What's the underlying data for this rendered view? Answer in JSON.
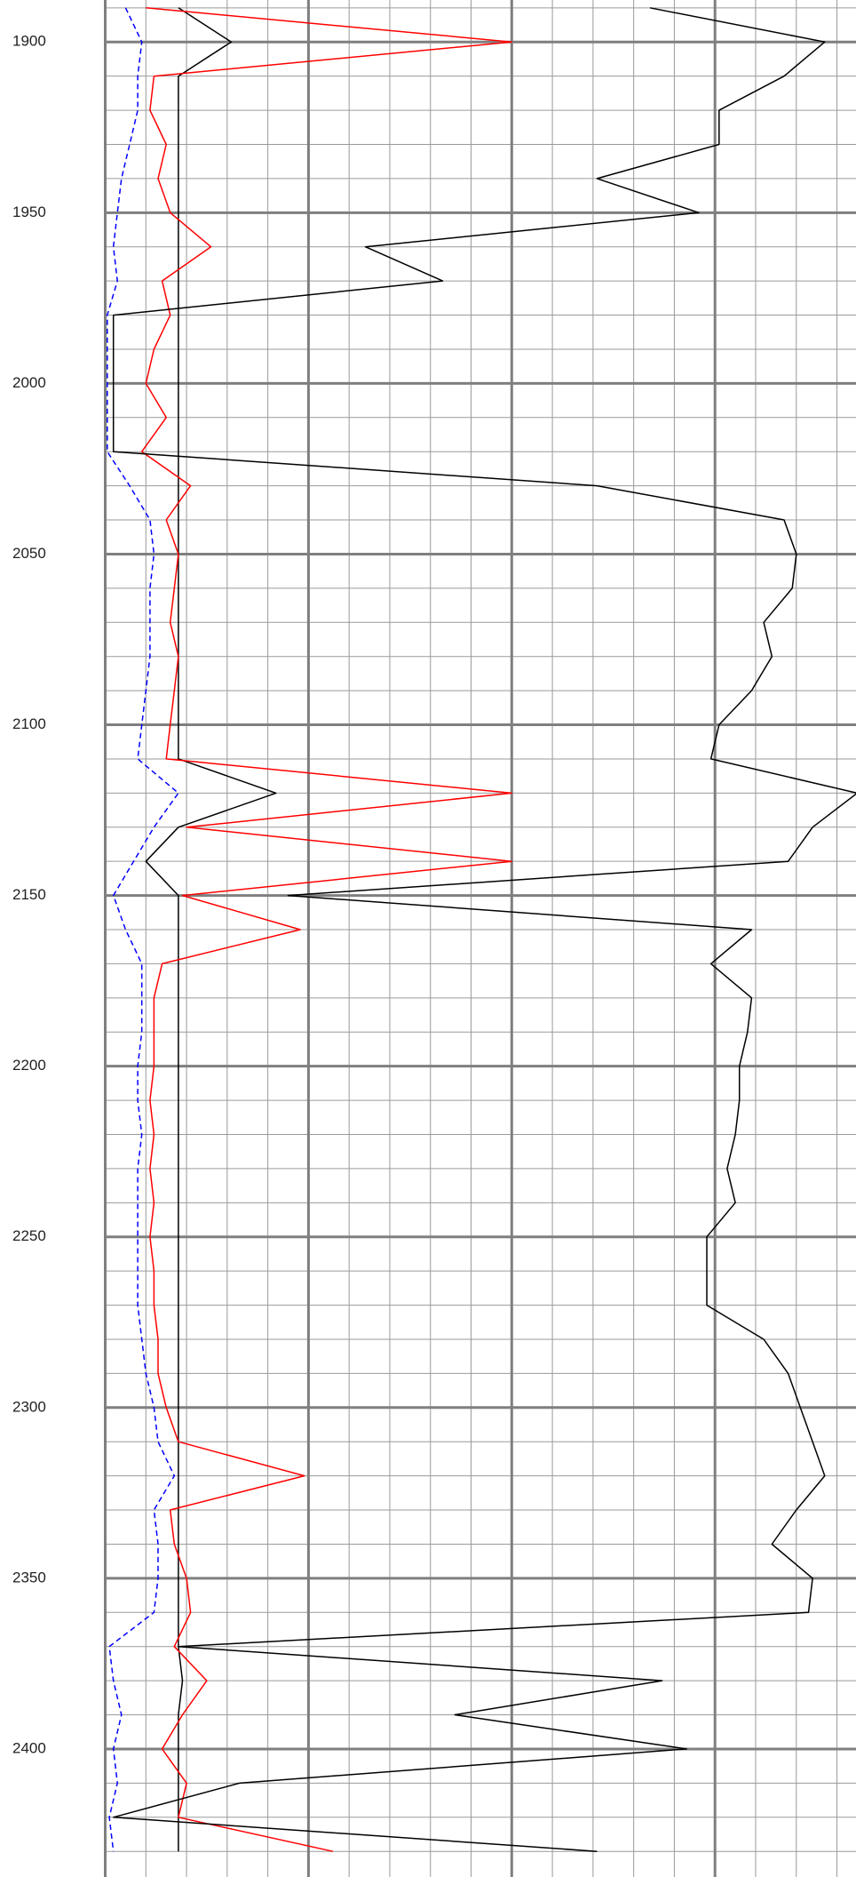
{
  "chart_data": {
    "type": "line",
    "ylim": [
      1887.7,
      2437.5
    ],
    "yticks": [
      1900,
      1950,
      2000,
      2050,
      2100,
      2150,
      2200,
      2250,
      2300,
      2350,
      2400
    ],
    "yminor": [
      1890,
      1910,
      1920,
      1930,
      1940,
      1960,
      1970,
      1980,
      1990,
      2010,
      2020,
      2030,
      2040,
      2060,
      2070,
      2080,
      2090,
      2110,
      2120,
      2130,
      2140,
      2160,
      2170,
      2180,
      2190,
      2210,
      2220,
      2230,
      2240,
      2260,
      2270,
      2280,
      2290,
      2310,
      2320,
      2330,
      2340,
      2360,
      2370,
      2380,
      2390,
      2410,
      2420,
      2430
    ],
    "tracks": [
      {
        "xlim": [
          0,
          10
        ],
        "xticks": [
          0,
          1,
          2,
          3,
          4,
          5,
          6,
          7,
          8,
          9,
          10
        ]
      },
      {
        "xlim": [
          0,
          10
        ],
        "xticks": [
          1,
          2,
          3,
          4,
          5,
          6,
          7,
          8
        ]
      }
    ],
    "grid": true,
    "depth": [
      1890,
      1900,
      1910,
      1920,
      1930,
      1940,
      1950,
      1960,
      1970,
      1980,
      1990,
      2000,
      2010,
      2020,
      2030,
      2040,
      2050,
      2060,
      2070,
      2080,
      2090,
      2100,
      2110,
      2120,
      2130,
      2140,
      2150,
      2160,
      2170,
      2180,
      2190,
      2200,
      2210,
      2220,
      2230,
      2240,
      2250,
      2260,
      2270,
      2280,
      2290,
      2300,
      2310,
      2320,
      2330,
      2340,
      2350,
      2360,
      2370,
      2380,
      2390,
      2400,
      2410,
      2420,
      2430
    ],
    "series": [
      {
        "track": 0,
        "color": "#0000ff",
        "dashed": true,
        "values": [
          0.5,
          0.9,
          0.8,
          0.8,
          0.6,
          0.4,
          0.3,
          0.2,
          0.3,
          0.05,
          0.05,
          0.05,
          0.05,
          0.05,
          0.6,
          1.1,
          1.2,
          1.1,
          1.1,
          1.1,
          1.0,
          0.9,
          0.8,
          1.8,
          1.2,
          0.7,
          0.2,
          0.5,
          0.9,
          0.9,
          0.9,
          0.8,
          0.8,
          0.9,
          0.8,
          0.8,
          0.8,
          0.8,
          0.8,
          0.9,
          1.0,
          1.2,
          1.3,
          1.7,
          1.2,
          1.3,
          1.3,
          1.2,
          0.1,
          0.2,
          0.4,
          0.2,
          0.3,
          0.1,
          0.2
        ]
      },
      {
        "track": 0,
        "color": "#000000",
        "dashed": false,
        "values": [
          1.8,
          3.1,
          1.8,
          1.8,
          1.8,
          1.8,
          1.8,
          1.8,
          1.8,
          1.8,
          1.8,
          1.8,
          1.8,
          1.8,
          1.8,
          1.8,
          1.8,
          1.8,
          1.8,
          1.8,
          1.8,
          1.8,
          1.8,
          4.2,
          1.8,
          1.0,
          1.8,
          1.8,
          1.8,
          1.8,
          1.8,
          1.8,
          1.8,
          1.8,
          1.8,
          1.8,
          1.8,
          1.8,
          1.8,
          1.8,
          1.8,
          1.8,
          1.8,
          1.8,
          1.8,
          1.8,
          1.8,
          1.8,
          1.8,
          1.9,
          1.8,
          1.8,
          1.8,
          1.8,
          1.8
        ]
      },
      {
        "track": 0,
        "color": "#ff0000",
        "dashed": false,
        "values": [
          1.0,
          10,
          1.2,
          1.1,
          1.5,
          1.3,
          1.6,
          2.6,
          1.4,
          1.6,
          1.2,
          1.0,
          1.5,
          0.9,
          2.1,
          1.5,
          1.8,
          1.7,
          1.6,
          1.8,
          1.7,
          1.6,
          1.5,
          10,
          2.0,
          10,
          1.9,
          4.8,
          1.4,
          1.2,
          1.2,
          1.2,
          1.1,
          1.2,
          1.1,
          1.2,
          1.1,
          1.2,
          1.2,
          1.3,
          1.3,
          1.5,
          1.8,
          4.9,
          1.6,
          1.7,
          2.0,
          2.1,
          1.7,
          2.5,
          1.9,
          1.4,
          2.0,
          1.8,
          5.6
        ]
      },
      {
        "track": 1,
        "color": "#000000",
        "dashed": false,
        "values": [
          3.4,
          7.7,
          6.7,
          5.1,
          5.1,
          2.1,
          4.6,
          -3.6,
          -1.7,
          -9.8,
          -9.8,
          -9.8,
          -9.8,
          -9.8,
          2.1,
          6.7,
          7.0,
          6.9,
          6.2,
          6.4,
          5.9,
          5.1,
          4.9,
          8.5,
          7.4,
          6.8,
          -5.5,
          5.9,
          4.9,
          5.9,
          5.8,
          5.6,
          5.6,
          5.5,
          5.3,
          5.5,
          4.8,
          4.8,
          4.8,
          6.2,
          6.8,
          7.1,
          7.4,
          7.7,
          7.0,
          6.4,
          7.4,
          7.3,
          -8.2,
          3.7,
          -1.4,
          4.3,
          -6.7,
          -9.8,
          2.1
        ]
      }
    ]
  }
}
